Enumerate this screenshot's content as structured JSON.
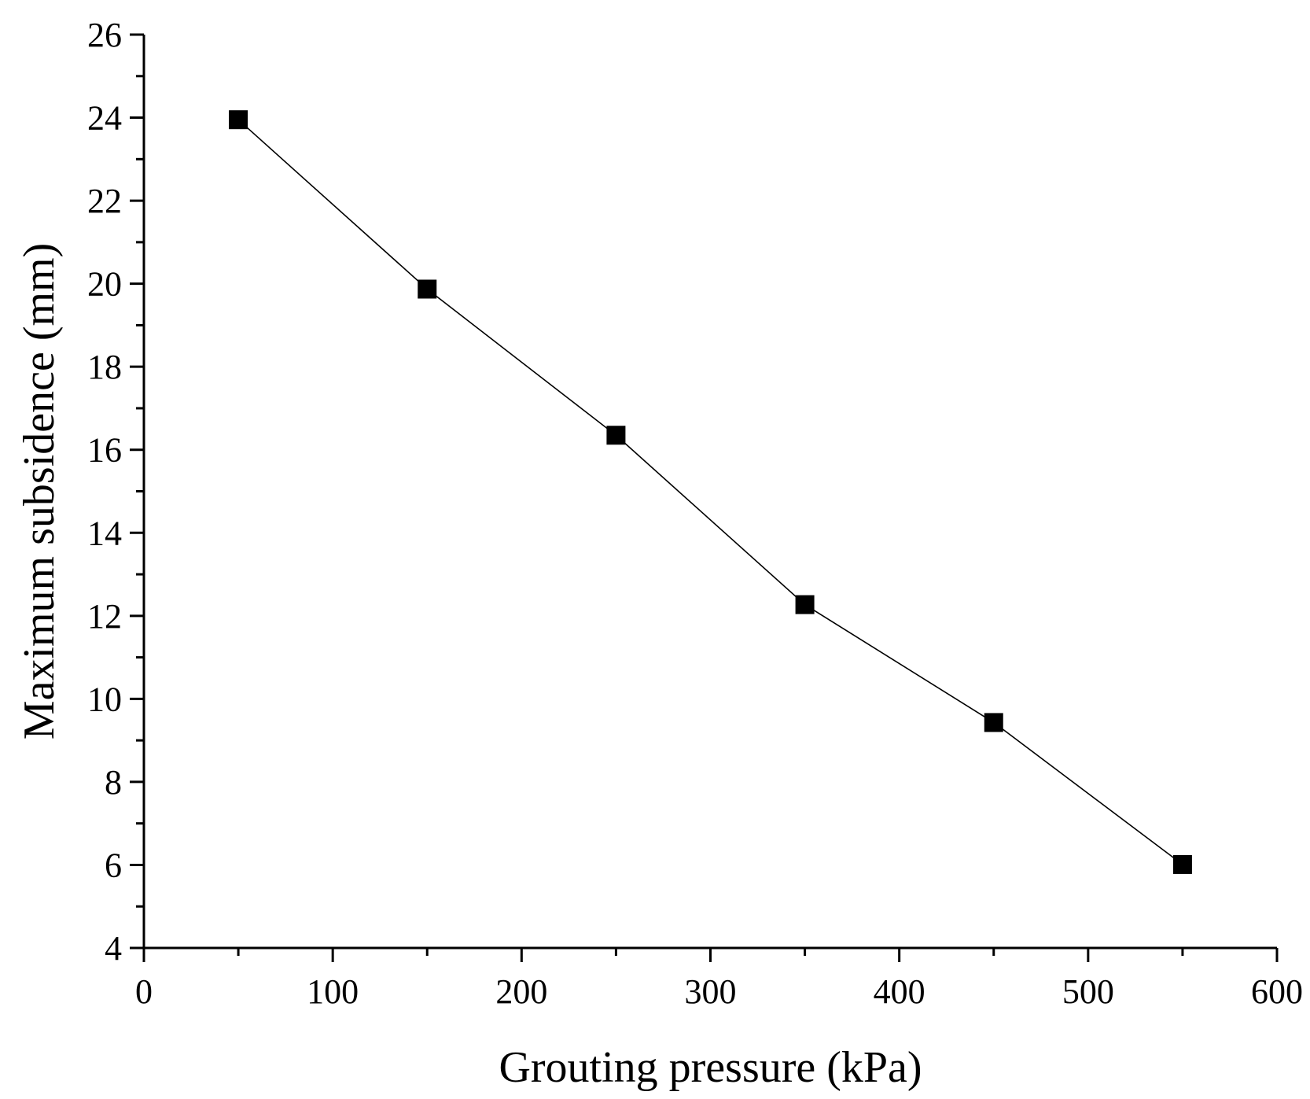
{
  "chart_data": {
    "type": "line",
    "title": "",
    "xlabel": "Grouting pressure (kPa)",
    "ylabel": "Maximum subsidence (mm)",
    "xlim": [
      0,
      600
    ],
    "ylim": [
      4,
      26
    ],
    "xticks": [
      0,
      100,
      200,
      300,
      400,
      500,
      600
    ],
    "yticks": [
      4,
      6,
      8,
      10,
      12,
      14,
      16,
      18,
      20,
      22,
      24,
      26
    ],
    "grid": false,
    "legend": "none",
    "series": [
      {
        "name": "Maximum subsidence",
        "marker": "square",
        "color": "#000000",
        "x": [
          50,
          150,
          250,
          350,
          450,
          550
        ],
        "y": [
          23.95,
          19.87,
          16.35,
          12.27,
          9.43,
          6.01
        ]
      }
    ]
  }
}
